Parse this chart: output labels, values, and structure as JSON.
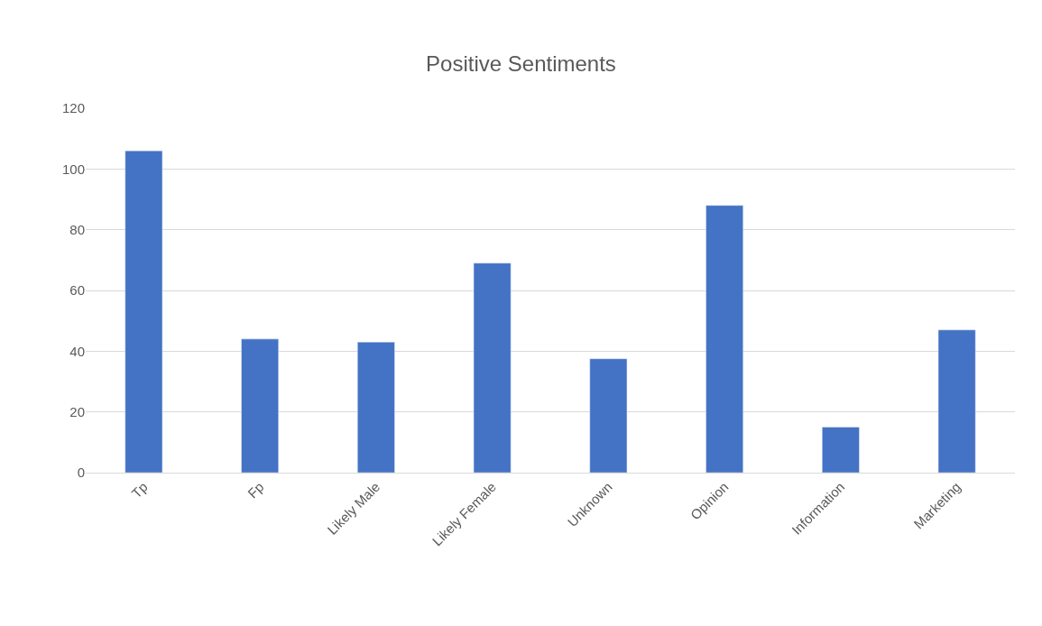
{
  "chart_data": {
    "type": "bar",
    "title": "Positive Sentiments",
    "categories": [
      "Tp",
      "Fp",
      "Likely Male",
      "Likely Female",
      "Unknown",
      "Opinion",
      "Information",
      "Marketing"
    ],
    "values": [
      106,
      44,
      43,
      69,
      37.5,
      88,
      15,
      47
    ],
    "color": "#4472c4",
    "ylim": [
      0,
      120
    ],
    "yticks": [
      0,
      20,
      40,
      60,
      80,
      100,
      120
    ],
    "grid": "y"
  }
}
